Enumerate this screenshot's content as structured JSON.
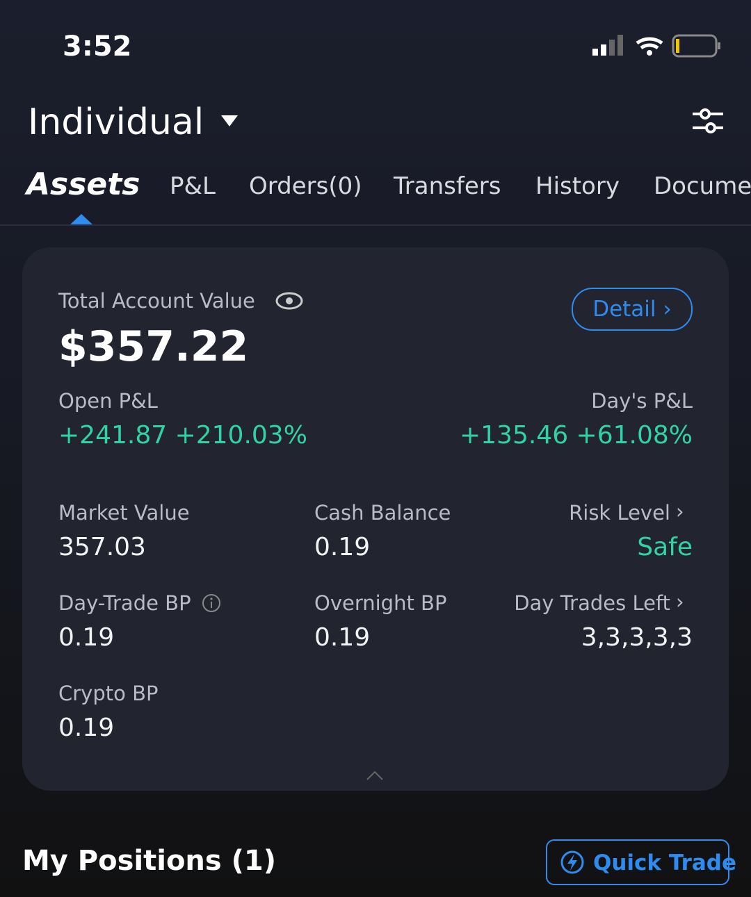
{
  "status_bar": {
    "time": "3:52"
  },
  "header": {
    "account": "Individual"
  },
  "tabs": [
    "Assets",
    "P&L",
    "Orders(0)",
    "Transfers",
    "History",
    "Documents"
  ],
  "summary": {
    "total_label": "Total Account Value",
    "total": "$357.22",
    "detail": "Detail",
    "open_pnl_label": "Open P&L",
    "open_pnl": "+241.87 +210.03%",
    "days_pnl_label": "Day's P&L",
    "days_pnl": "+135.46 +61.08%",
    "metrics": [
      {
        "label": "Market Value",
        "value": "357.03"
      },
      {
        "label": "Cash Balance",
        "value": "0.19"
      },
      {
        "label": "Risk Level",
        "value": "Safe"
      },
      {
        "label": "Day-Trade BP",
        "value": "0.19"
      },
      {
        "label": "Overnight BP",
        "value": "0.19"
      },
      {
        "label": "Day Trades Left",
        "value": "3,3,3,3,3"
      },
      {
        "label": "Crypto BP",
        "value": "0.19"
      }
    ]
  },
  "positions": {
    "title": "My Positions (1)",
    "quick_trade": "Quick Trade"
  }
}
